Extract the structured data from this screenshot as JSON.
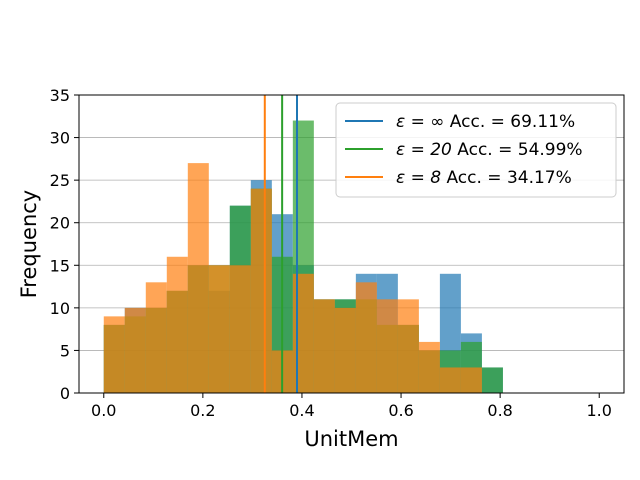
{
  "chart_data": {
    "type": "histogram",
    "xlabel": "UnitMem",
    "ylabel": "Frequency",
    "xlim": [
      -0.05,
      1.05
    ],
    "ylim": [
      0,
      35
    ],
    "x_ticks": [
      "0.0",
      "0.2",
      "0.4",
      "0.6",
      "0.8",
      "1.0"
    ],
    "x_tick_values": [
      0,
      0.2,
      0.4,
      0.6,
      0.8,
      1.0
    ],
    "y_ticks": [
      "0",
      "5",
      "10",
      "15",
      "20",
      "25",
      "30",
      "35"
    ],
    "y_tick_values": [
      0,
      5,
      10,
      15,
      20,
      25,
      30,
      35
    ],
    "grid": "horizontal",
    "legend_position": "upper right",
    "bin_width": 0.0424,
    "bin_starts": [
      0.0,
      0.0424,
      0.0848,
      0.1272,
      0.1696,
      0.212,
      0.2544,
      0.2968,
      0.3392,
      0.3816,
      0.424,
      0.4664,
      0.5088,
      0.5512,
      0.5936,
      0.636,
      0.6784,
      0.7208,
      0.7632,
      0.8056,
      0.848,
      0.8904,
      0.9328,
      0.9752
    ],
    "series": [
      {
        "name_prefix": "ε = ∞",
        "accuracy_text": "Acc. = 69.11%",
        "color": "#1f77b4",
        "mean_line": 0.39,
        "values": [
          8,
          10,
          10,
          12,
          15,
          12,
          22,
          25,
          21,
          15,
          11,
          11,
          14,
          14,
          8,
          5,
          14,
          7,
          3,
          0,
          0,
          0,
          0,
          0
        ]
      },
      {
        "name_prefix": "ε = 20",
        "accuracy_text": "Acc. = 54.99%",
        "color": "#2ca02c",
        "mean_line": 0.36,
        "values": [
          8,
          9,
          10,
          12,
          15,
          15,
          22,
          24,
          16,
          32,
          11,
          11,
          11,
          8,
          8,
          5,
          5,
          6,
          3,
          0,
          0,
          0,
          0,
          0
        ]
      },
      {
        "name_prefix": "ε = 8",
        "accuracy_text": "Acc. = 34.17%",
        "color": "#ff7f0e",
        "mean_line": 0.325,
        "values": [
          9,
          10,
          13,
          16,
          27,
          15,
          15,
          24,
          5,
          14,
          11,
          10,
          13,
          11,
          11,
          6,
          3,
          3,
          0,
          0,
          0,
          0,
          0,
          0
        ]
      }
    ]
  }
}
